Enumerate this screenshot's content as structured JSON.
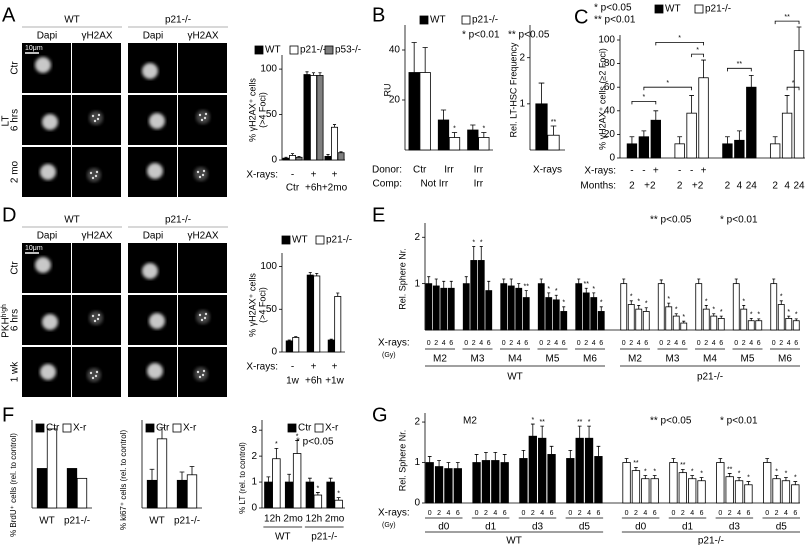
{
  "images": {
    "A": {
      "panel": "A",
      "label": "LT",
      "columns": [
        "WT",
        "p21-/-"
      ],
      "channels": [
        "Dapi",
        "γH2AX"
      ],
      "rows": [
        "Ctr",
        "6 hrs",
        "2 mo"
      ],
      "scale": "10μm"
    },
    "D": {
      "panel": "D",
      "label": "PKHʰⁱᵍʰ",
      "columns": [
        "WT",
        "p21-/-"
      ],
      "channels": [
        "Dapi",
        "γH2AX"
      ],
      "rows": [
        "Ctr",
        "6 hrs",
        "1 wk"
      ],
      "scale": "10μm"
    }
  },
  "chart_data": [
    {
      "type": "bar",
      "ylabel": [
        "% γH2AX⁺ cells",
        "(>4 Foci)"
      ],
      "ylim": [
        0,
        110
      ],
      "yticks": [
        0,
        50,
        100
      ],
      "xrays_label": "X-rays:",
      "xrays": [
        "-",
        "+",
        "+"
      ],
      "categories": [
        "Ctr",
        "+6h",
        "+2mo"
      ],
      "series": [
        {
          "name": "WT",
          "color": "#000000",
          "values": [
            2,
            94,
            4
          ],
          "errors": [
            1,
            3,
            2
          ]
        },
        {
          "name": "p21-/-",
          "color": "#ffffff",
          "values": [
            5,
            93,
            36
          ],
          "errors": [
            2,
            3,
            3
          ]
        },
        {
          "name": "p53-/-",
          "color": "#7f7f7f",
          "values": [
            3,
            93,
            8
          ],
          "errors": [
            1,
            3,
            1
          ]
        }
      ]
    },
    {
      "type": "bar",
      "panel": "B",
      "ylabel": [
        "RU"
      ],
      "ylim": [
        0,
        48
      ],
      "yticks": [
        20,
        40
      ],
      "notes": [
        "* p<0.01",
        "** p<0.05"
      ],
      "donor_label": "Donor:",
      "categories": [
        "Ctr",
        "Irr",
        "Irr"
      ],
      "comp_label": "Comp:",
      "comp": [
        "Not Irr",
        "Irr"
      ],
      "series": [
        {
          "name": "WT",
          "color": "#000000",
          "values": [
            31,
            12,
            8
          ],
          "errors": [
            12,
            4,
            2
          ]
        },
        {
          "name": "p21-/-",
          "color": "#ffffff",
          "values": [
            31,
            5,
            5
          ],
          "errors": [
            10,
            2,
            2
          ],
          "stars": [
            null,
            "*",
            "*"
          ]
        }
      ]
    },
    {
      "type": "bar",
      "ylabel": [
        "Rel. LT-HSC Frequency"
      ],
      "ylim": [
        0,
        2.6
      ],
      "yticks": [
        1,
        2
      ],
      "xlabel": "X-rays",
      "series": [
        {
          "color": "#000000",
          "values": [
            1.0
          ],
          "errors": [
            0.45
          ]
        },
        {
          "color": "#ffffff",
          "values": [
            0.32
          ],
          "errors": [
            0.2
          ],
          "stars": [
            "**"
          ]
        }
      ]
    },
    {
      "type": "bar",
      "panel": "C",
      "ylabel": [
        "% γH2AX⁺ cells (≥2 Foci)"
      ],
      "ylim": [
        0,
        100
      ],
      "yticks": [
        0,
        20,
        40,
        60,
        80,
        100
      ],
      "notes": [
        "* p<0.05",
        "** p<0.01"
      ],
      "xrays_label": "X-rays:",
      "months_label": "Months:",
      "brackets": [
        "*",
        "*",
        "*",
        "*",
        "**",
        "*",
        "**"
      ],
      "series": [
        {
          "name": "WT",
          "color": "#000000",
          "values": [
            12,
            18,
            32,
            12,
            15,
            60
          ],
          "errors": [
            6,
            5,
            8,
            6,
            8,
            10
          ],
          "xrays": [
            "-",
            "-",
            "+",
            null,
            null,
            null
          ],
          "months": [
            "2",
            "+2",
            null,
            "2",
            "4",
            "24"
          ]
        },
        {
          "name": "p21-/-",
          "color": "#ffffff",
          "values": [
            12,
            38,
            68,
            12,
            38,
            91
          ],
          "errors": [
            6,
            15,
            15,
            6,
            15,
            20
          ],
          "xrays": [
            "-",
            "-",
            "+",
            null,
            null,
            null
          ],
          "months": [
            "2",
            "+2",
            null,
            "2",
            "4",
            "24"
          ]
        }
      ]
    },
    {
      "type": "bar",
      "ylabel": [
        "% γH2AX⁺ cells",
        "(>4 Foci)"
      ],
      "ylim": [
        0,
        110
      ],
      "yticks": [
        0,
        50,
        100
      ],
      "xrays_label": "X-rays:",
      "xrays": [
        "-",
        "+",
        "+"
      ],
      "categories": [
        "1w",
        "+6h",
        "+1w"
      ],
      "series": [
        {
          "name": "WT",
          "color": "#000000",
          "values": [
            13,
            90,
            14
          ],
          "errors": [
            1,
            3,
            1
          ]
        },
        {
          "name": "p21-/-",
          "color": "#ffffff",
          "values": [
            17,
            89,
            65
          ],
          "errors": [
            1,
            3,
            4
          ]
        }
      ]
    },
    {
      "type": "bar",
      "panel": "E",
      "ylabel": [
        "Rel. Sphere Nr."
      ],
      "ylim": [
        0,
        2.2
      ],
      "yticks": [
        1,
        2
      ],
      "notes": [
        "** p<0.05",
        "* p<0.01"
      ],
      "xrays_label": "X-rays:",
      "unit": "(Gy)",
      "doses": [
        0,
        2,
        4,
        6
      ],
      "series": [
        {
          "name": "WT",
          "color": "#000000",
          "groups": [
            "M2",
            "M3",
            "M4",
            "M5",
            "M6"
          ],
          "values": [
            1.0,
            0.95,
            0.9,
            0.9,
            1.0,
            1.5,
            1.5,
            0.85,
            1.0,
            0.95,
            0.9,
            0.7,
            1.0,
            0.7,
            0.65,
            0.4,
            1.0,
            0.8,
            0.7,
            0.4
          ],
          "errors": [
            0.15,
            0.15,
            0.15,
            0.15,
            0.15,
            0.3,
            0.3,
            0.2,
            0.1,
            0.15,
            0.1,
            0.15,
            0.1,
            0.1,
            0.1,
            0.1,
            0.1,
            0.1,
            0.1,
            0.1
          ],
          "stars": [
            null,
            null,
            null,
            null,
            null,
            "*",
            "*",
            null,
            null,
            null,
            null,
            "**",
            null,
            "*",
            "*",
            "*",
            null,
            "**",
            "*",
            "*"
          ]
        },
        {
          "name": "p21-/-",
          "color": "#ffffff",
          "groups": [
            "M2",
            "M3",
            "M4",
            "M5",
            "M6"
          ],
          "values": [
            1.0,
            0.55,
            0.45,
            0.4,
            1.0,
            0.5,
            0.3,
            0.15,
            1.0,
            0.45,
            0.3,
            0.25,
            1.0,
            0.45,
            0.2,
            0.2,
            1.0,
            0.55,
            0.25,
            0.2
          ],
          "errors": [
            0.1,
            0.08,
            0.08,
            0.08,
            0.08,
            0.08,
            0.05,
            0.04,
            0.1,
            0.08,
            0.05,
            0.05,
            0.1,
            0.08,
            0.05,
            0.04,
            0.1,
            0.08,
            0.05,
            0.04
          ],
          "stars": [
            null,
            "*",
            "*",
            "*",
            null,
            "*",
            "*",
            "*",
            null,
            "*",
            "*",
            "*",
            null,
            "*",
            "*",
            "*",
            null,
            "*",
            "*",
            "*"
          ]
        }
      ]
    },
    {
      "type": "bar",
      "panel": "F",
      "ylabel": [
        "% BrdU⁺ cells (rel. to control)"
      ],
      "ylim": [
        0,
        2.1
      ],
      "categories": [
        "WT",
        "p21-/-"
      ],
      "series": [
        {
          "name": "Ctr",
          "color": "#000000",
          "values": [
            1,
            1
          ]
        },
        {
          "name": "X-r",
          "color": "#ffffff",
          "values": [
            2,
            0.75
          ]
        }
      ]
    },
    {
      "type": "bar",
      "ylabel": [
        "% ki67⁺ cells (rel. to control)"
      ],
      "ylim": [
        0,
        3
      ],
      "categories": [
        "WT",
        "p21-/-"
      ],
      "series": [
        {
          "name": "Ctr",
          "color": "#000000",
          "values": [
            1,
            1
          ],
          "errors": [
            0.4,
            0.3
          ]
        },
        {
          "name": "X-r",
          "color": "#ffffff",
          "values": [
            2.5,
            1.2
          ],
          "errors": [
            0.4,
            0.3
          ]
        }
      ]
    },
    {
      "type": "bar",
      "ylabel": [
        "% LT (rel. to control)"
      ],
      "ylim": [
        0,
        3.2
      ],
      "yticks": [
        0,
        1,
        2,
        3
      ],
      "notes": [
        "* p<0.05"
      ],
      "categories": [
        "12h",
        "2mo",
        "12h",
        "2mo"
      ],
      "groups": [
        "WT",
        "p21-/-"
      ],
      "series": [
        {
          "name": "Ctr",
          "color": "#000000",
          "values": [
            1,
            1,
            1,
            1
          ],
          "errors": [
            0.2,
            0.3,
            0.15,
            0.15
          ]
        },
        {
          "name": "X-r",
          "color": "#ffffff",
          "values": [
            1.9,
            2.1,
            0.5,
            0.3
          ],
          "errors": [
            0.4,
            0.5,
            0.1,
            0.1
          ],
          "stars": [
            "*",
            "*",
            "*",
            "*"
          ]
        }
      ]
    },
    {
      "type": "bar",
      "panel": "G",
      "title": "M2",
      "ylabel": [
        "Rel. Sphere Nr."
      ],
      "ylim": [
        0,
        2.1
      ],
      "yticks": [
        0,
        1,
        2
      ],
      "notes": [
        "** p<0.05",
        "* p<0.01"
      ],
      "xrays_label": "X-rays:",
      "unit": "(Gy)",
      "doses": [
        0,
        2,
        4,
        6
      ],
      "series": [
        {
          "name": "WT",
          "color": "#000000",
          "groups": [
            "d0",
            "d1",
            "d3",
            "d5"
          ],
          "values": [
            1.0,
            0.9,
            0.85,
            0.85,
            1.0,
            1.05,
            1.05,
            1.0,
            1.1,
            1.65,
            1.6,
            1.2,
            1.1,
            1.6,
            1.6,
            1.15
          ],
          "errors": [
            0.15,
            0.15,
            0.15,
            0.15,
            0.2,
            0.2,
            0.2,
            0.2,
            0.2,
            0.3,
            0.3,
            0.2,
            0.2,
            0.3,
            0.3,
            0.25
          ],
          "stars": [
            null,
            null,
            null,
            null,
            null,
            null,
            null,
            null,
            null,
            "*",
            "**",
            null,
            null,
            "**",
            "*",
            null
          ]
        },
        {
          "name": "p21-/-",
          "color": "#ffffff",
          "groups": [
            "d0",
            "d1",
            "d3",
            "d5"
          ],
          "values": [
            1.0,
            0.8,
            0.6,
            0.6,
            1.0,
            0.75,
            0.6,
            0.55,
            1.0,
            0.65,
            0.55,
            0.45,
            1.0,
            0.6,
            0.55,
            0.45
          ],
          "errors": [
            0.1,
            0.08,
            0.08,
            0.08,
            0.1,
            0.08,
            0.08,
            0.08,
            0.1,
            0.08,
            0.08,
            0.08,
            0.1,
            0.08,
            0.08,
            0.08
          ],
          "stars": [
            null,
            "**",
            "*",
            "*",
            null,
            "**",
            "*",
            "*",
            null,
            "**",
            "*",
            "*",
            null,
            "*",
            "*",
            "*"
          ]
        }
      ]
    }
  ]
}
